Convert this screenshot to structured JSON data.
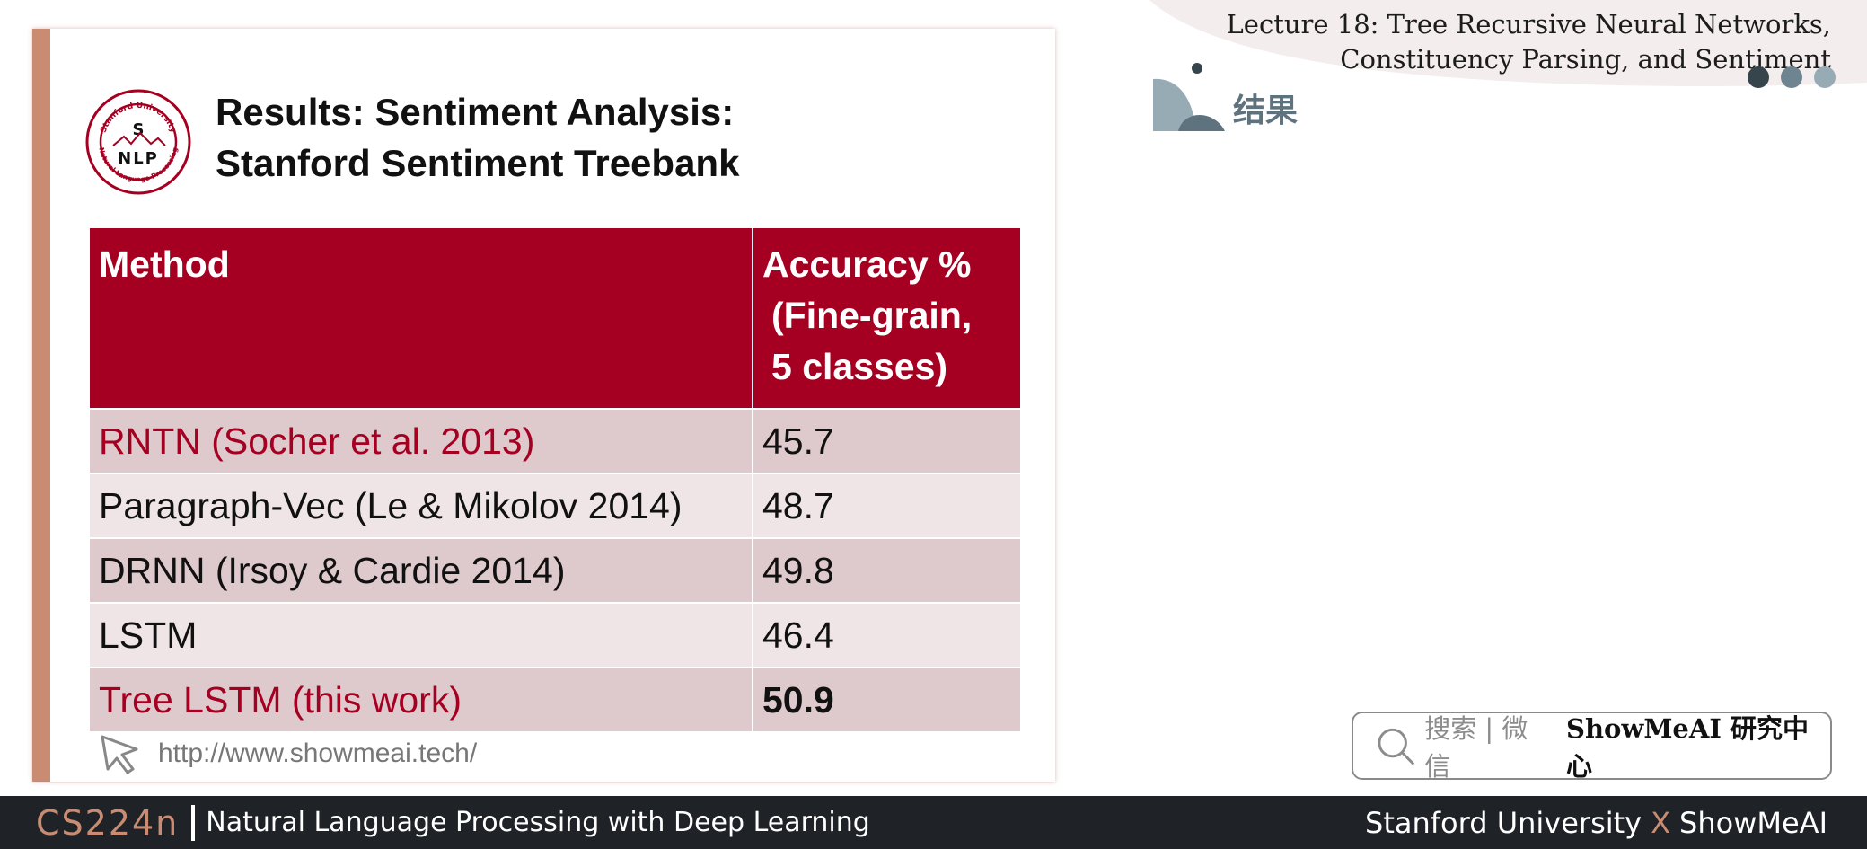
{
  "slide": {
    "logo": {
      "top_text": "Stanford University",
      "bottom_text": "Natural Language Processing",
      "letter_s": "S",
      "letters_nlp": "NLP"
    },
    "title_lines": [
      "Results: Sentiment Analysis:",
      "Stanford Sentiment Treebank"
    ],
    "table": {
      "header": {
        "method": "Method",
        "accuracy_lines": [
          "Accuracy %",
          "(Fine-grain,",
          "5 classes)"
        ]
      },
      "rows": [
        {
          "method": "RNTN (Socher et al. 2013)",
          "accuracy": "45.7"
        },
        {
          "method": "Paragraph-Vec (Le & Mikolov 2014)",
          "accuracy": "48.7"
        },
        {
          "method": "DRNN (Irsoy & Cardie 2014)",
          "accuracy": "49.8"
        },
        {
          "method": "LSTM",
          "accuracy": "46.4"
        },
        {
          "method": "Tree LSTM (this work)",
          "accuracy": "50.9"
        }
      ]
    },
    "url": "http://www.showmeai.tech/"
  },
  "header": {
    "lecture_title_lines": [
      "Lecture 18: Tree Recursive Neural Networks,",
      "Constituency Parsing, and Sentiment"
    ],
    "section_title": "结果"
  },
  "search": {
    "label": "搜索 | 微信",
    "brand": "ShowMeAI 研究中心"
  },
  "footer": {
    "course_code": "CS224n",
    "course_name": "Natural Language Processing with Deep Learning",
    "credit_left": "Stanford University",
    "credit_x": "X",
    "credit_right": "ShowMeAI"
  },
  "colors": {
    "header_red": "#a50021",
    "accent_copper": "#c98c73",
    "footer_bg": "#1f2327",
    "section_slate": "#5e737e"
  },
  "icons": [
    "stanford-nlp-logo",
    "cursor-icon",
    "search-icon",
    "section-icon"
  ]
}
